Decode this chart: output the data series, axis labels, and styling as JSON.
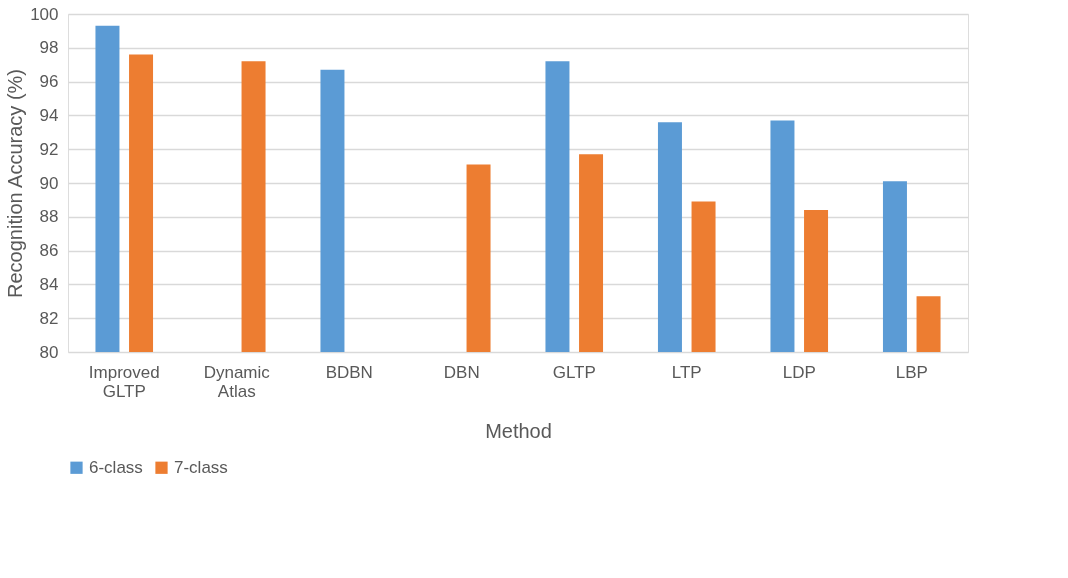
{
  "chart_data": {
    "type": "bar",
    "xlabel": "Method",
    "ylabel": "Recognition Accuracy (%)",
    "categories": [
      "Improved GLTP",
      "Dynamic Atlas",
      "BDBN",
      "DBN",
      "GLTP",
      "LTP",
      "LDP",
      "LBP"
    ],
    "series": [
      {
        "name": "6-class",
        "color": "#5b9bd5",
        "values": [
          99.3,
          null,
          96.7,
          null,
          97.2,
          93.6,
          93.7,
          90.1
        ]
      },
      {
        "name": "7-class",
        "color": "#ed7d31",
        "values": [
          97.6,
          97.2,
          null,
          91.1,
          91.7,
          88.9,
          88.4,
          83.3
        ]
      }
    ],
    "ylim": [
      80,
      100
    ],
    "yticks": [
      80,
      82,
      84,
      86,
      88,
      90,
      92,
      94,
      96,
      98,
      100
    ],
    "grid": "y",
    "legend": "bottom"
  }
}
